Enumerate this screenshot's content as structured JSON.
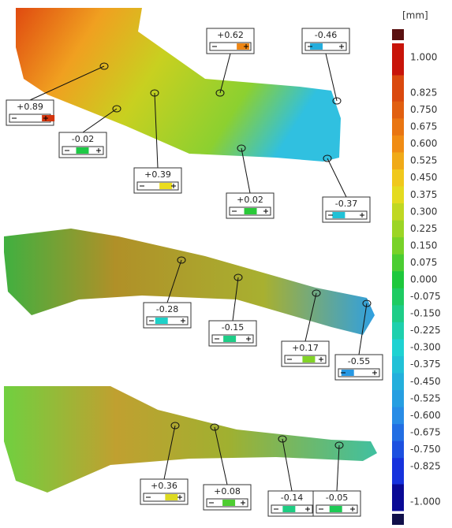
{
  "colorbar": {
    "unit": "[mm]",
    "ticks": [
      {
        "value": 1,
        "label": "1.000"
      },
      {
        "value": 0.825,
        "label": "0.825"
      },
      {
        "value": 0.75,
        "label": "0.750"
      },
      {
        "value": 0.675,
        "label": "0.675"
      },
      {
        "value": 0.6,
        "label": "0.600"
      },
      {
        "value": 0.525,
        "label": "0.525"
      },
      {
        "value": 0.45,
        "label": "0.450"
      },
      {
        "value": 0.375,
        "label": "0.375"
      },
      {
        "value": 0.3,
        "label": "0.300"
      },
      {
        "value": 0.225,
        "label": "0.225"
      },
      {
        "value": 0.15,
        "label": "0.150"
      },
      {
        "value": 0.075,
        "label": "0.075"
      },
      {
        "value": 0,
        "label": "0.000"
      },
      {
        "value": -0.075,
        "label": "-0.075"
      },
      {
        "value": -0.15,
        "label": "-0.150"
      },
      {
        "value": -0.225,
        "label": "-0.225"
      },
      {
        "value": -0.3,
        "label": "-0.300"
      },
      {
        "value": -0.375,
        "label": "-0.375"
      },
      {
        "value": -0.45,
        "label": "-0.450"
      },
      {
        "value": -0.525,
        "label": "-0.525"
      },
      {
        "value": -0.6,
        "label": "-0.600"
      },
      {
        "value": -0.675,
        "label": "-0.675"
      },
      {
        "value": -0.75,
        "label": "-0.750"
      },
      {
        "value": -0.825,
        "label": "-0.825"
      },
      {
        "value": -1,
        "label": "-1.000"
      }
    ]
  },
  "annotations": [
    {
      "value": 0.89,
      "label": "+0.89"
    },
    {
      "value": -0.02,
      "label": "-0.02"
    },
    {
      "value": 0.39,
      "label": "+0.39"
    },
    {
      "value": 0.62,
      "label": "+0.62"
    },
    {
      "value": -0.46,
      "label": "-0.46"
    },
    {
      "value": 0.02,
      "label": "+0.02"
    },
    {
      "value": -0.37,
      "label": "-0.37"
    },
    {
      "value": -0.28,
      "label": "-0.28"
    },
    {
      "value": -0.15,
      "label": "-0.15"
    },
    {
      "value": 0.17,
      "label": "+0.17"
    },
    {
      "value": -0.55,
      "label": "-0.55"
    },
    {
      "value": 0.36,
      "label": "+0.36"
    },
    {
      "value": 0.08,
      "label": "+0.08"
    },
    {
      "value": -0.14,
      "label": "-0.14"
    },
    {
      "value": -0.05,
      "label": "-0.05"
    }
  ]
}
